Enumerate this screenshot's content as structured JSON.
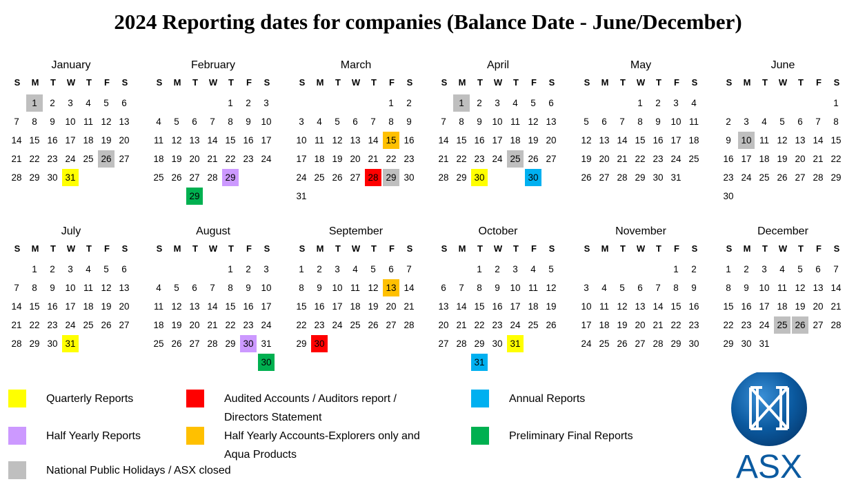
{
  "title": "2024 Reporting dates for companies (Balance Date - June/December)",
  "weekday_headers": [
    "S",
    "M",
    "T",
    "W",
    "T",
    "F",
    "S"
  ],
  "months": [
    {
      "name": "January",
      "start": 1,
      "days": 31,
      "marks": {
        "1": "holiday",
        "26": "holiday",
        "31": "quarterly"
      },
      "extra": []
    },
    {
      "name": "February",
      "start": 4,
      "days": 29,
      "marks": {
        "29": "halfyear"
      },
      "extra": [
        {
          "day": 29,
          "type": "prelim"
        }
      ]
    },
    {
      "name": "March",
      "start": 5,
      "days": 31,
      "marks": {
        "15": "explorers",
        "28": "audited",
        "29": "holiday"
      },
      "extra": []
    },
    {
      "name": "April",
      "start": 1,
      "days": 30,
      "marks": {
        "1": "holiday",
        "25": "holiday",
        "30": "quarterly"
      },
      "extra": [
        {
          "day": 30,
          "type": "annual"
        }
      ]
    },
    {
      "name": "May",
      "start": 3,
      "days": 31,
      "marks": {},
      "extra": []
    },
    {
      "name": "June",
      "start": 6,
      "days": 30,
      "marks": {
        "10": "holiday"
      },
      "extra": []
    },
    {
      "name": "July",
      "start": 1,
      "days": 31,
      "marks": {
        "31": "quarterly"
      },
      "extra": []
    },
    {
      "name": "August",
      "start": 4,
      "days": 31,
      "marks": {
        "30": "halfyear"
      },
      "extra": [
        {
          "day": 30,
          "type": "prelim"
        }
      ]
    },
    {
      "name": "September",
      "start": 0,
      "days": 30,
      "marks": {
        "13": "explorers",
        "30": "audited"
      },
      "extra": []
    },
    {
      "name": "October",
      "start": 2,
      "days": 31,
      "marks": {
        "31": "quarterly"
      },
      "extra": [
        {
          "day": 31,
          "type": "annual"
        }
      ]
    },
    {
      "name": "November",
      "start": 5,
      "days": 30,
      "marks": {},
      "extra": []
    },
    {
      "name": "December",
      "start": 0,
      "days": 31,
      "marks": {
        "25": "holiday",
        "26": "holiday"
      },
      "extra": []
    }
  ],
  "colors": {
    "quarterly": "#ffff00",
    "audited": "#ff0000",
    "halfyear": "#cc99ff",
    "explorers": "#ffc000",
    "holiday": "#bfbfbf",
    "annual": "#00b0f0",
    "prelim": "#00b050"
  },
  "legend": {
    "quarterly": "Quarterly Reports",
    "audited": "Audited Accounts / Auditors report / Directors Statement",
    "annual": "Annual Reports",
    "halfyear": "Half Yearly Reports",
    "explorers": "Half Yearly Accounts-Explorers only and Aqua Products",
    "prelim": "Preliminary Final Reports",
    "holiday": "National Public Holidays / ASX closed"
  },
  "logo": {
    "text": "ASX",
    "icon": "asx-globe-icon",
    "color": "#0b5aa0"
  }
}
